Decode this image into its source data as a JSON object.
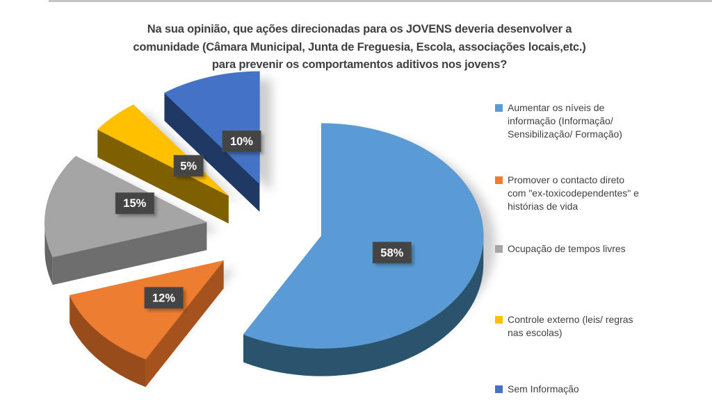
{
  "title": {
    "lines": [
      "Na sua opinião, que ações direcionadas para os JOVENS deveria desenvolver a",
      "comunidade (Câmara Municipal, Junta de Freguesia, Escola, associações locais,etc.)",
      "para prevenir os comportamentos aditivos nos jovens?"
    ]
  },
  "chart_data": {
    "type": "pie",
    "style": "3d-exploded",
    "title": "Na sua opinião, que ações direcionadas para os JOVENS deveria desenvolver a comunidade (Câmara Municipal, Junta de Freguesia, Escola, associações locais,etc.) para prevenir os comportamentos aditivos nos jovens?",
    "unit": "%",
    "legend_position": "right",
    "start_angle_deg": 0,
    "direction": "clockwise",
    "slices": [
      {
        "label": "Aumentar os níveis de informação (Informação/ Sensibilização/ Formação)",
        "value": 58,
        "data_label": "58%",
        "color": "#5B9BD5",
        "side_color": "#2E5B77"
      },
      {
        "label": "Promover o contacto direto com \"ex-toxicodependentes\" e histórias de vida",
        "value": 12,
        "data_label": "12%",
        "color": "#ED7D31",
        "side_color": "#A5521D"
      },
      {
        "label": "Ocupação de tempos livres",
        "value": 15,
        "data_label": "15%",
        "color": "#A5A5A5",
        "side_color": "#6E6E6E"
      },
      {
        "label": "Controle externo (leis/ regras nas escolas)",
        "value": 5,
        "data_label": "5%",
        "color": "#FFC000",
        "side_color": "#7F6000"
      },
      {
        "label": "Sem Informação",
        "value": 10,
        "data_label": "10%",
        "color": "#4472C4",
        "side_color": "#1F3864"
      }
    ],
    "data_label_style": {
      "bg": "#3F3F3F",
      "dot": "#5A5A5A",
      "text": "#FFFFFF"
    }
  },
  "legend": {
    "items": [
      {
        "label": "Aumentar os níveis de\ninformação (Informação/\nSensibilização/ Formação)",
        "color": "#5B9BD5"
      },
      {
        "label": "Promover o contacto direto\ncom \"ex-toxicodependentes\" e\nhistórias de vida",
        "color": "#ED7D31"
      },
      {
        "label": "Ocupação de tempos livres",
        "color": "#A5A5A5"
      },
      {
        "label": "Controle externo (leis/ regras\nnas escolas)",
        "color": "#FFC000"
      },
      {
        "label": "Sem Informação",
        "color": "#4472C4"
      }
    ]
  }
}
